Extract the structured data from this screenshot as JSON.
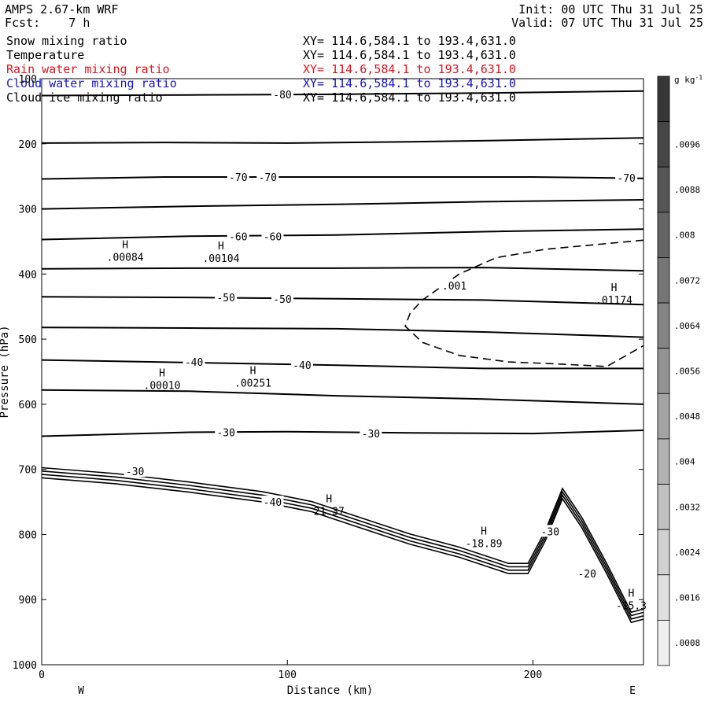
{
  "header": {
    "model": "AMPS 2.67-km WRF",
    "forecast_label": "Fcst:",
    "forecast_value": "7 h",
    "init": "Init: 00 UTC Thu 31 Jul 25",
    "valid": "Valid: 07 UTC Thu 31 Jul 25"
  },
  "fields": [
    {
      "name": "Snow mixing ratio",
      "xy": "XY= 114.6,584.1 to 193.4,631.0",
      "color": "#000000"
    },
    {
      "name": "Temperature",
      "xy": "XY= 114.6,584.1 to 193.4,631.0",
      "color": "#000000"
    },
    {
      "name": "Rain water mixing ratio",
      "xy": "XY= 114.6,584.1 to 193.4,631.0",
      "color": "#e0141e"
    },
    {
      "name": "Cloud water mixing ratio",
      "xy": "XY= 114.6,584.1 to 193.4,631.0",
      "color": "#1414c8"
    },
    {
      "name": "Cloud ice mixing ratio",
      "xy": "XY= 114.6,584.1 to 193.4,631.0",
      "color": "#000000"
    }
  ],
  "chart_data": {
    "type": "line",
    "xlabel": "Distance (km)",
    "ylabel": "Pressure (hPa)",
    "xlim": [
      0,
      245
    ],
    "ylim": [
      100,
      1000
    ],
    "y_reversed": true,
    "x_ticks": [
      0,
      100,
      200
    ],
    "y_ticks": [
      100,
      200,
      300,
      400,
      500,
      600,
      700,
      800,
      900,
      1000
    ],
    "x_end_labels": {
      "left": "W",
      "right": "E"
    },
    "colorbar": {
      "unit": "g kg",
      "unit_exp": "-1",
      "ticks": [
        ".0096",
        ".0088",
        ".008",
        ".0072",
        ".0064",
        ".0056",
        ".0048",
        ".004",
        ".0032",
        ".0024",
        ".0016",
        ".0008"
      ],
      "max": 0.0104,
      "step": 0.0008
    },
    "isotherms": [
      {
        "label": "-80",
        "points": [
          [
            0,
            126
          ],
          [
            60,
            125
          ],
          [
            120,
            124
          ],
          [
            180,
            122
          ],
          [
            245,
            119
          ]
        ]
      },
      {
        "label": "",
        "points": [
          [
            0,
            199
          ],
          [
            50,
            198
          ],
          [
            100,
            199
          ],
          [
            150,
            197
          ],
          [
            200,
            194
          ],
          [
            245,
            191
          ]
        ]
      },
      {
        "label": "-70",
        "points": [
          [
            0,
            254
          ],
          [
            50,
            251
          ],
          [
            100,
            251
          ],
          [
            150,
            251
          ],
          [
            200,
            251
          ],
          [
            245,
            253
          ]
        ]
      },
      {
        "label": "",
        "points": [
          [
            0,
            300
          ],
          [
            60,
            296
          ],
          [
            120,
            293
          ],
          [
            180,
            289
          ],
          [
            245,
            286
          ]
        ]
      },
      {
        "label": "-60",
        "points": [
          [
            0,
            347
          ],
          [
            60,
            342
          ],
          [
            120,
            340
          ],
          [
            180,
            335
          ],
          [
            245,
            331
          ]
        ]
      },
      {
        "label": "",
        "points": [
          [
            0,
            392
          ],
          [
            60,
            391
          ],
          [
            120,
            391
          ],
          [
            180,
            390
          ],
          [
            245,
            395
          ]
        ]
      },
      {
        "label": "-50",
        "points": [
          [
            0,
            435
          ],
          [
            60,
            436
          ],
          [
            120,
            438
          ],
          [
            180,
            440
          ],
          [
            245,
            447
          ]
        ]
      },
      {
        "label": "",
        "points": [
          [
            0,
            482
          ],
          [
            60,
            483
          ],
          [
            120,
            484
          ],
          [
            180,
            489
          ],
          [
            245,
            497
          ]
        ]
      },
      {
        "label": "-40",
        "points": [
          [
            0,
            532
          ],
          [
            60,
            536
          ],
          [
            120,
            540
          ],
          [
            180,
            545
          ],
          [
            245,
            545
          ]
        ]
      },
      {
        "label": "",
        "points": [
          [
            0,
            578
          ],
          [
            60,
            580
          ],
          [
            120,
            587
          ],
          [
            180,
            592
          ],
          [
            245,
            600
          ]
        ]
      },
      {
        "label": "-30",
        "points": [
          [
            0,
            649
          ],
          [
            60,
            643
          ],
          [
            100,
            642
          ],
          [
            150,
            644
          ],
          [
            200,
            645
          ],
          [
            245,
            640
          ]
        ]
      }
    ],
    "terrain_surface": [
      [
        0,
        713
      ],
      [
        30,
        722
      ],
      [
        60,
        735
      ],
      [
        90,
        750
      ],
      [
        110,
        765
      ],
      [
        130,
        790
      ],
      [
        150,
        815
      ],
      [
        170,
        835
      ],
      [
        190,
        860
      ],
      [
        198,
        860
      ],
      [
        205,
        810
      ],
      [
        212,
        745
      ],
      [
        220,
        790
      ],
      [
        230,
        860
      ],
      [
        240,
        935
      ],
      [
        245,
        930
      ]
    ],
    "dashed_contour": {
      "label": ".001",
      "points": [
        [
          245,
          348
        ],
        [
          225,
          355
        ],
        [
          205,
          362
        ],
        [
          185,
          375
        ],
        [
          170,
          400
        ],
        [
          155,
          440
        ],
        [
          150,
          460
        ],
        [
          148,
          480
        ],
        [
          155,
          505
        ],
        [
          170,
          525
        ],
        [
          190,
          535
        ],
        [
          210,
          538
        ],
        [
          230,
          542
        ],
        [
          245,
          510
        ]
      ]
    },
    "extrema": [
      {
        "symbol": "H",
        "value": ".00084",
        "x": 34,
        "p": 370
      },
      {
        "symbol": "H",
        "value": ".00104",
        "x": 73,
        "p": 372
      },
      {
        "symbol": "H",
        "value": ".01174",
        "x": 233,
        "p": 436
      },
      {
        "symbol": "H",
        "value": ".00010",
        "x": 49,
        "p": 567
      },
      {
        "symbol": "H",
        "value": ".00251",
        "x": 86,
        "p": 563
      },
      {
        "symbol": "H",
        "value": "21.37",
        "x": 117,
        "p": 760
      },
      {
        "symbol": "H",
        "value": "-18.89",
        "x": 180,
        "p": 810
      },
      {
        "symbol": "H",
        "value": "-15.3",
        "x": 240,
        "p": 905
      }
    ],
    "inline_labels": [
      {
        "text": "-80",
        "x": 98,
        "p": 124
      },
      {
        "text": "-70",
        "x": 80,
        "p": 251
      },
      {
        "text": "-70",
        "x": 92,
        "p": 251
      },
      {
        "text": "-70",
        "x": 238,
        "p": 252
      },
      {
        "text": "-60",
        "x": 80,
        "p": 342
      },
      {
        "text": "-60",
        "x": 94,
        "p": 342
      },
      {
        "text": "-50",
        "x": 75,
        "p": 436
      },
      {
        "text": "-50",
        "x": 98,
        "p": 438
      },
      {
        "text": "-40",
        "x": 62,
        "p": 535
      },
      {
        "text": "-40",
        "x": 106,
        "p": 540
      },
      {
        "text": "-30",
        "x": 75,
        "p": 643
      },
      {
        "text": "-30",
        "x": 134,
        "p": 645
      },
      {
        "text": "-30",
        "x": 38,
        "p": 703
      },
      {
        "text": "-40",
        "x": 94,
        "p": 750
      },
      {
        "text": "-30",
        "x": 207,
        "p": 795
      },
      {
        "text": "-20",
        "x": 222,
        "p": 860
      },
      {
        "text": ".001",
        "x": 168,
        "p": 418
      }
    ]
  }
}
